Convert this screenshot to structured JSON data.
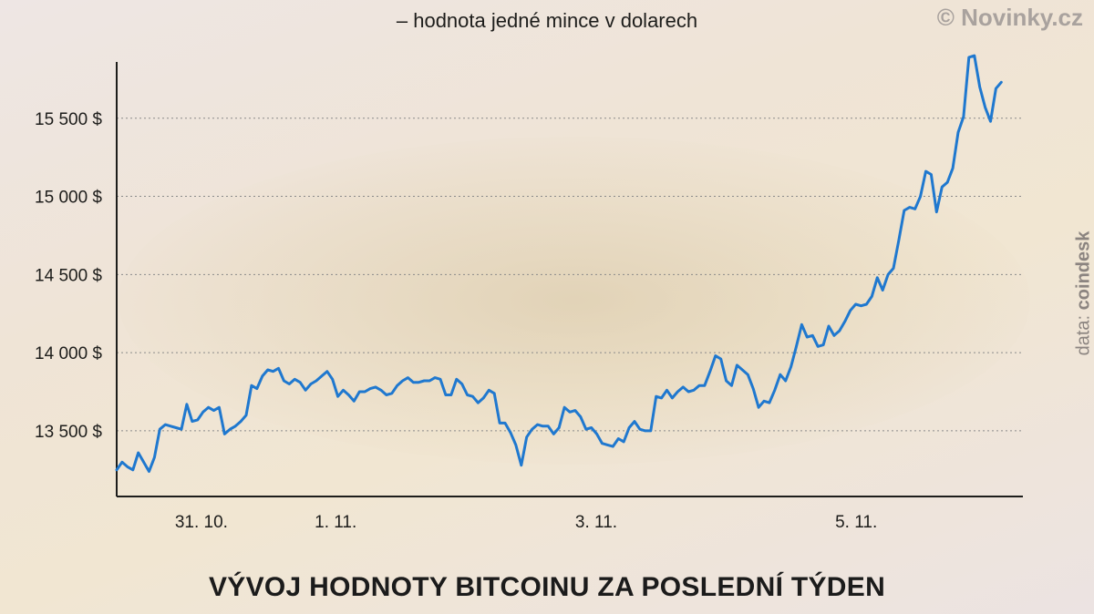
{
  "header": {
    "subtitle": "– hodnota jedné mince v dolarech",
    "watermark": "© Novinky.cz"
  },
  "footer": {
    "title": "VÝVOJ HODNOTY BITCOINU ZA POSLEDNÍ TÝDEN"
  },
  "source": {
    "prefix": "data: ",
    "name": "coindesk"
  },
  "colors": {
    "line": "#1f78cf",
    "axis": "#1d1d1b",
    "grid": "#8a8a8a"
  },
  "chart_data": {
    "type": "line",
    "title": "VÝVOJ HODNOTY BITCOINU ZA POSLEDNÍ TÝDEN",
    "subtitle": "– hodnota jedné mince v dolarech",
    "xlabel": "",
    "ylabel": "",
    "x_unit": "hours since chart start (31 Oct)",
    "xlim": [
      0,
      168
    ],
    "ylim": [
      13080,
      15860
    ],
    "grid": "horizontal dotted",
    "yticks": [
      {
        "value": 13500,
        "label": "13 500 $"
      },
      {
        "value": 14000,
        "label": "14 000 $"
      },
      {
        "value": 14500,
        "label": "14 500 $"
      },
      {
        "value": 15000,
        "label": "15 000 $"
      },
      {
        "value": 15500,
        "label": "15 500 $"
      }
    ],
    "xticks": [
      {
        "value": 15.7,
        "label": "31. 10."
      },
      {
        "value": 40.6,
        "label": "1. 11."
      },
      {
        "value": 88.9,
        "label": "3. 11."
      },
      {
        "value": 137.1,
        "label": "5. 11."
      }
    ],
    "series": [
      {
        "name": "Bitcoin",
        "points": [
          [
            0,
            13250
          ],
          [
            1,
            13300
          ],
          [
            2,
            13270
          ],
          [
            3,
            13250
          ],
          [
            4,
            13360
          ],
          [
            5,
            13300
          ],
          [
            6,
            13240
          ],
          [
            7,
            13330
          ],
          [
            8,
            13510
          ],
          [
            9,
            13540
          ],
          [
            10,
            13530
          ],
          [
            11,
            13520
          ],
          [
            12,
            13510
          ],
          [
            13,
            13670
          ],
          [
            14,
            13560
          ],
          [
            15,
            13570
          ],
          [
            16,
            13620
          ],
          [
            17,
            13650
          ],
          [
            18,
            13630
          ],
          [
            19,
            13650
          ],
          [
            20,
            13480
          ],
          [
            21,
            13510
          ],
          [
            22,
            13530
          ],
          [
            23,
            13560
          ],
          [
            24,
            13600
          ],
          [
            25,
            13790
          ],
          [
            26,
            13770
          ],
          [
            27,
            13850
          ],
          [
            28,
            13890
          ],
          [
            29,
            13880
          ],
          [
            30,
            13900
          ],
          [
            31,
            13820
          ],
          [
            32,
            13800
          ],
          [
            33,
            13830
          ],
          [
            34,
            13810
          ],
          [
            35,
            13760
          ],
          [
            36,
            13800
          ],
          [
            37,
            13820
          ],
          [
            38,
            13850
          ],
          [
            39,
            13880
          ],
          [
            40,
            13830
          ],
          [
            41,
            13720
          ],
          [
            42,
            13760
          ],
          [
            43,
            13730
          ],
          [
            44,
            13690
          ],
          [
            45,
            13750
          ],
          [
            46,
            13750
          ],
          [
            47,
            13770
          ],
          [
            48,
            13780
          ],
          [
            49,
            13760
          ],
          [
            50,
            13730
          ],
          [
            51,
            13740
          ],
          [
            52,
            13790
          ],
          [
            53,
            13820
          ],
          [
            54,
            13840
          ],
          [
            55,
            13810
          ],
          [
            56,
            13810
          ],
          [
            57,
            13820
          ],
          [
            58,
            13820
          ],
          [
            59,
            13840
          ],
          [
            60,
            13830
          ],
          [
            61,
            13730
          ],
          [
            62,
            13730
          ],
          [
            63,
            13830
          ],
          [
            64,
            13800
          ],
          [
            65,
            13730
          ],
          [
            66,
            13720
          ],
          [
            67,
            13680
          ],
          [
            68,
            13710
          ],
          [
            69,
            13760
          ],
          [
            70,
            13740
          ],
          [
            71,
            13550
          ],
          [
            72,
            13550
          ],
          [
            73,
            13490
          ],
          [
            74,
            13410
          ],
          [
            75,
            13280
          ],
          [
            76,
            13460
          ],
          [
            77,
            13510
          ],
          [
            78,
            13540
          ],
          [
            79,
            13530
          ],
          [
            80,
            13530
          ],
          [
            81,
            13480
          ],
          [
            82,
            13520
          ],
          [
            83,
            13650
          ],
          [
            84,
            13620
          ],
          [
            85,
            13630
          ],
          [
            86,
            13590
          ],
          [
            87,
            13510
          ],
          [
            88,
            13520
          ],
          [
            89,
            13480
          ],
          [
            90,
            13420
          ],
          [
            91,
            13410
          ],
          [
            92,
            13400
          ],
          [
            93,
            13450
          ],
          [
            94,
            13430
          ],
          [
            95,
            13520
          ],
          [
            96,
            13560
          ],
          [
            97,
            13510
          ],
          [
            98,
            13500
          ],
          [
            99,
            13500
          ],
          [
            100,
            13720
          ],
          [
            101,
            13710
          ],
          [
            102,
            13760
          ],
          [
            103,
            13710
          ],
          [
            104,
            13750
          ],
          [
            105,
            13780
          ],
          [
            106,
            13750
          ],
          [
            107,
            13760
          ],
          [
            108,
            13790
          ],
          [
            109,
            13790
          ],
          [
            110,
            13880
          ],
          [
            111,
            13980
          ],
          [
            112,
            13960
          ],
          [
            113,
            13820
          ],
          [
            114,
            13790
          ],
          [
            115,
            13920
          ],
          [
            116,
            13890
          ],
          [
            117,
            13860
          ],
          [
            118,
            13770
          ],
          [
            119,
            13650
          ],
          [
            120,
            13690
          ],
          [
            121,
            13680
          ],
          [
            122,
            13760
          ],
          [
            123,
            13860
          ],
          [
            124,
            13820
          ],
          [
            125,
            13910
          ],
          [
            126,
            14040
          ],
          [
            127,
            14180
          ],
          [
            128,
            14100
          ],
          [
            129,
            14110
          ],
          [
            130,
            14040
          ],
          [
            131,
            14050
          ],
          [
            132,
            14170
          ],
          [
            133,
            14110
          ],
          [
            134,
            14140
          ],
          [
            135,
            14200
          ],
          [
            136,
            14270
          ],
          [
            137,
            14310
          ],
          [
            138,
            14300
          ],
          [
            139,
            14310
          ],
          [
            140,
            14360
          ],
          [
            141,
            14480
          ],
          [
            142,
            14400
          ],
          [
            143,
            14500
          ],
          [
            144,
            14540
          ],
          [
            145,
            14720
          ],
          [
            146,
            14910
          ],
          [
            147,
            14930
          ],
          [
            148,
            14920
          ],
          [
            149,
            15000
          ],
          [
            150,
            15160
          ],
          [
            151,
            15140
          ],
          [
            152,
            14900
          ],
          [
            153,
            15060
          ],
          [
            154,
            15090
          ],
          [
            155,
            15180
          ],
          [
            156,
            15410
          ],
          [
            157,
            15510
          ],
          [
            158,
            15890
          ],
          [
            159,
            15900
          ],
          [
            160,
            15700
          ],
          [
            161,
            15570
          ],
          [
            162,
            15480
          ],
          [
            163,
            15690
          ],
          [
            164,
            15730
          ]
        ]
      }
    ]
  }
}
